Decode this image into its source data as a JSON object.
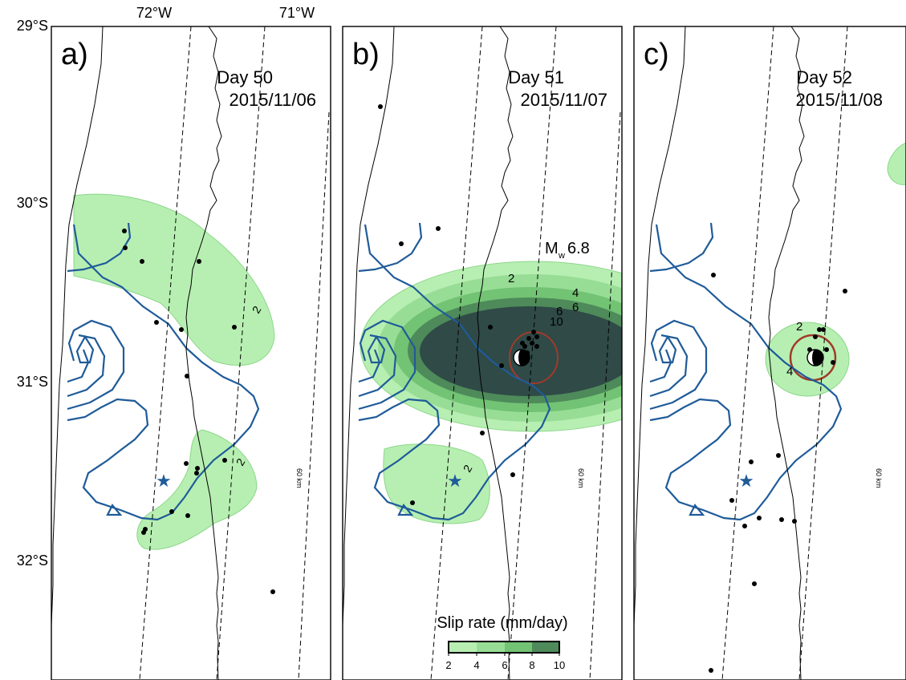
{
  "axis_labels": {
    "lon": [
      "72°W",
      "71°W"
    ],
    "lat": [
      "29°S",
      "30°S",
      "31°S",
      "32°S"
    ]
  },
  "panels": [
    {
      "letter": "a)",
      "day": "Day 50",
      "date": "2015/11/06"
    },
    {
      "letter": "b)",
      "day": "Day 51",
      "date": "2015/11/07"
    },
    {
      "letter": "c)",
      "day": "Day 52",
      "date": "2015/11/08"
    }
  ],
  "contour_labels": {
    "a": [
      "2",
      "2"
    ],
    "b": [
      "2",
      "4",
      "6",
      "6",
      "10"
    ],
    "c": [
      "2",
      "4"
    ]
  },
  "distance_label": "60 km",
  "magnitude": {
    "prefix": "M",
    "subscript": "w",
    "value": "6.8"
  },
  "colorbar": {
    "title": "Slip rate (mm/day)",
    "ticks": [
      "2",
      "4",
      "6",
      "8",
      "10"
    ]
  },
  "colors": {
    "slip_2": "#b7efb2",
    "slip_4": "#98dd96",
    "slip_6": "#72c374",
    "slip_8": "#4e8a5a",
    "slip_10": "#2f4a47",
    "contour_blue": "#1f5b99",
    "mag_circle": "#a13a2a",
    "star": "#1f5b99"
  }
}
